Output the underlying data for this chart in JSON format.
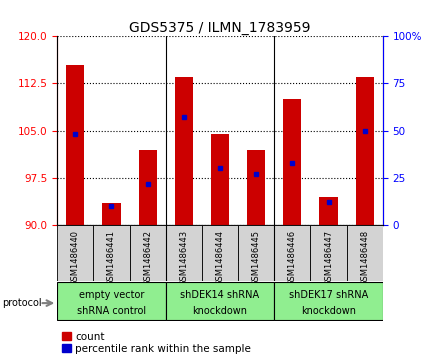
{
  "title": "GDS5375 / ILMN_1783959",
  "samples": [
    "GSM1486440",
    "GSM1486441",
    "GSM1486442",
    "GSM1486443",
    "GSM1486444",
    "GSM1486445",
    "GSM1486446",
    "GSM1486447",
    "GSM1486448"
  ],
  "count_values": [
    115.5,
    93.5,
    102.0,
    113.5,
    104.5,
    102.0,
    110.0,
    94.5,
    113.5
  ],
  "percentile_values": [
    48,
    10,
    22,
    57,
    30,
    27,
    33,
    12,
    50
  ],
  "ylim_left": [
    90,
    120
  ],
  "yticks_left": [
    90,
    97.5,
    105,
    112.5,
    120
  ],
  "ylim_right": [
    0,
    100
  ],
  "yticks_right": [
    0,
    25,
    50,
    75,
    100
  ],
  "bar_color": "#cc0000",
  "percentile_color": "#0000cc",
  "bar_width": 0.5,
  "groups": [
    {
      "label": "empty vector\nshRNA control",
      "samples_range": [
        0,
        2
      ]
    },
    {
      "label": "shDEK14 shRNA\nknockdown",
      "samples_range": [
        3,
        5
      ]
    },
    {
      "label": "shDEK17 shRNA\nknockdown",
      "samples_range": [
        6,
        8
      ]
    }
  ],
  "group_color": "#90ee90",
  "sample_box_color": "#d3d3d3",
  "protocol_label": "protocol",
  "legend_count_label": "count",
  "legend_percentile_label": "percentile rank within the sample",
  "title_fontsize": 10,
  "tick_fontsize": 7.5,
  "group_label_fontsize": 7,
  "legend_fontsize": 7.5
}
